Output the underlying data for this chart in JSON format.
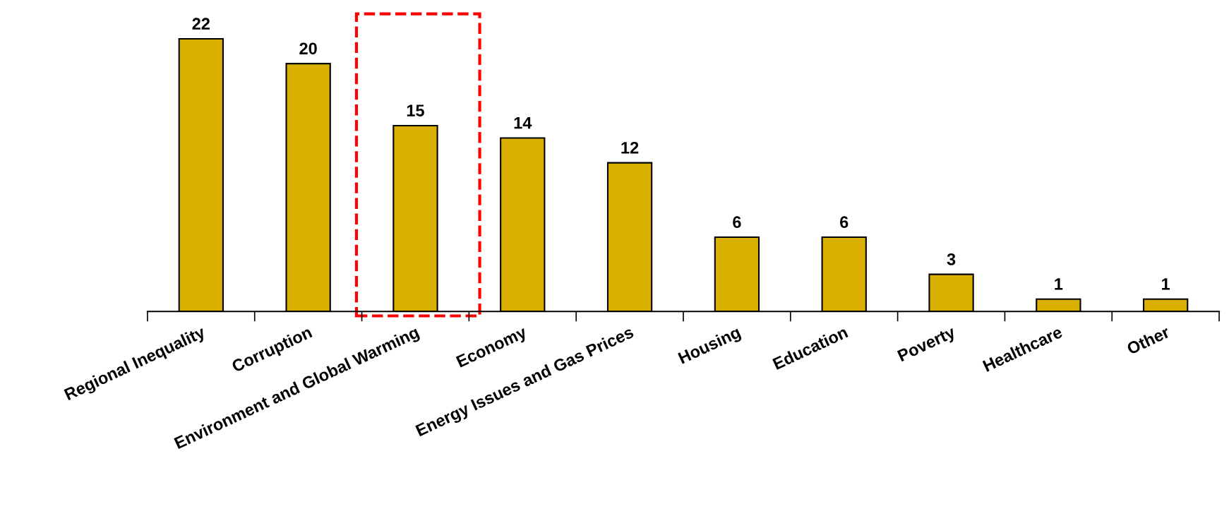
{
  "chart_data": {
    "type": "bar",
    "categories": [
      "Regional Inequality",
      "Corruption",
      "Environment and Global Warming",
      "Economy",
      "Energy Issues and Gas Prices",
      "Housing",
      "Education",
      "Poverty",
      "Healthcare",
      "Other"
    ],
    "values": [
      22,
      20,
      15,
      14,
      12,
      6,
      6,
      3,
      1,
      1
    ],
    "color": "#d9b000",
    "data_labels": true,
    "grid": false,
    "legend": false
  }
}
